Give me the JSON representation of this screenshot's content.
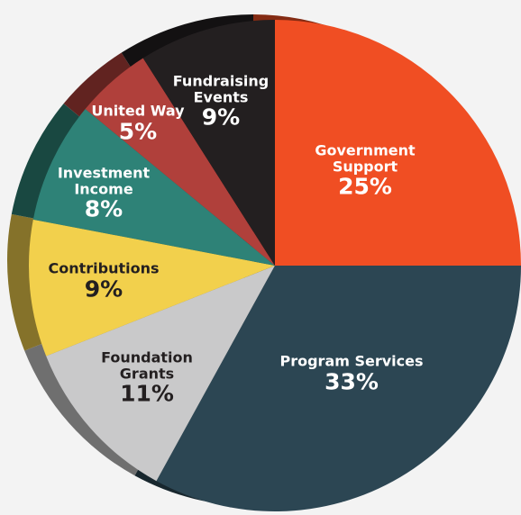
{
  "chart_data": {
    "type": "pie",
    "categories": [
      "Government Support",
      "Program Services",
      "Foundation Grants",
      "Contributions",
      "Investment Income",
      "United Way",
      "Fundraising Events"
    ],
    "values": [
      25,
      33,
      11,
      9,
      8,
      5,
      9
    ],
    "value_labels": [
      "25%",
      "33%",
      "11%",
      "9%",
      "8%",
      "5%",
      "9%"
    ],
    "colors": [
      "#f04e23",
      "#2c4653",
      "#c9c9ca",
      "#f2d04c",
      "#2e8277",
      "#b0403b",
      "#231f20"
    ]
  }
}
